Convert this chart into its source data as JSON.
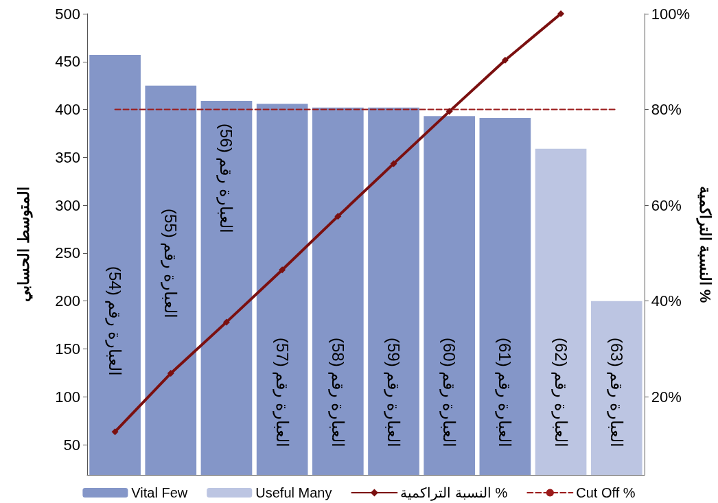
{
  "chart_data": {
    "type": "bar",
    "categories": [
      "العبارة رقم (54)",
      "العبارة رقم (55)",
      "العبارة رقم (56)",
      "العبارة رقم (57)",
      "العبارة رقم (58)",
      "العبارة رقم (59)",
      "العبارة رقم (60)",
      "العبارة رقم (61)",
      "العبارة رقم (62)",
      "العبارة رقم (63)"
    ],
    "series": [
      {
        "name": "Vital Few",
        "color": "#8496c8",
        "values": [
          457,
          425,
          409,
          406,
          402,
          402,
          393,
          391,
          null,
          null
        ]
      },
      {
        "name": "Useful Many",
        "color": "#bcc5e2",
        "values": [
          null,
          null,
          null,
          null,
          null,
          null,
          null,
          null,
          359,
          200
        ]
      },
      {
        "name": "النسبة التراكمية %",
        "type": "line",
        "axis": "y2",
        "color": "#7b1010",
        "marker": "diamond",
        "line_style": "solid",
        "values": [
          12.7,
          24.9,
          35.6,
          46.5,
          57.7,
          68.7,
          79.6,
          90.3,
          100,
          null
        ]
      },
      {
        "name": "Cut Off %",
        "type": "line",
        "axis": "y2",
        "color": "#9b1b1b",
        "marker": "none",
        "line_style": "dashed",
        "values": [
          80,
          80,
          80,
          80,
          80,
          80,
          80,
          80,
          80,
          80
        ]
      }
    ],
    "ylabel": "المتوسط الحسابي",
    "y2label": "النسبة التراكمية %",
    "ylim": [
      18.5,
      500
    ],
    "yticks": [
      50,
      100,
      150,
      200,
      250,
      300,
      350,
      400,
      450,
      500
    ],
    "y2lim": [
      3.7,
      100
    ],
    "y2ticks": [
      {
        "value": 20,
        "label": "20%"
      },
      {
        "value": 40,
        "label": "40%"
      },
      {
        "value": 60,
        "label": "60%"
      },
      {
        "value": 80,
        "label": "80%"
      },
      {
        "value": 100,
        "label": "100%"
      }
    ],
    "legend": "bottom",
    "grid": false
  }
}
